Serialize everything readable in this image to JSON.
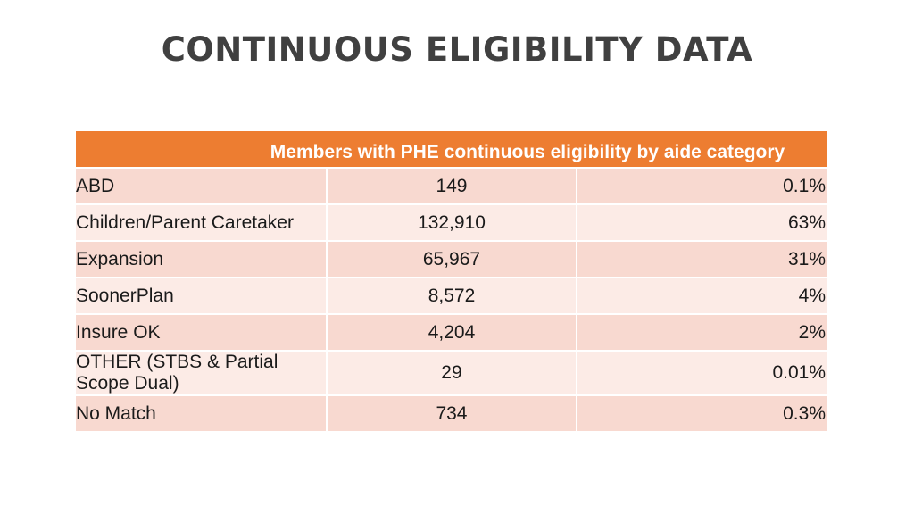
{
  "slide": {
    "title": "CONTINUOUS ELIGIBILITY DATA"
  },
  "table": {
    "header": "Members with PHE continuous eligibility by aide category",
    "rows": [
      {
        "category": "ABD",
        "count": "149",
        "percent": "0.1%"
      },
      {
        "category": "Children/Parent Caretaker",
        "count": "132,910",
        "percent": "63%"
      },
      {
        "category": "Expansion",
        "count": "65,967",
        "percent": "31%"
      },
      {
        "category": "SoonerPlan",
        "count": "8,572",
        "percent": "4%"
      },
      {
        "category": "Insure OK",
        "count": "4,204",
        "percent": "2%"
      },
      {
        "category": "OTHER (STBS & Partial Scope Dual)",
        "count": "29",
        "percent": "0.01%"
      },
      {
        "category": "No Match",
        "count": "734",
        "percent": "0.3%"
      }
    ]
  },
  "colors": {
    "header_bg": "#ed7d31",
    "row_odd": "#f8d9d0",
    "row_even": "#fcebe6",
    "title_text": "#404040"
  }
}
